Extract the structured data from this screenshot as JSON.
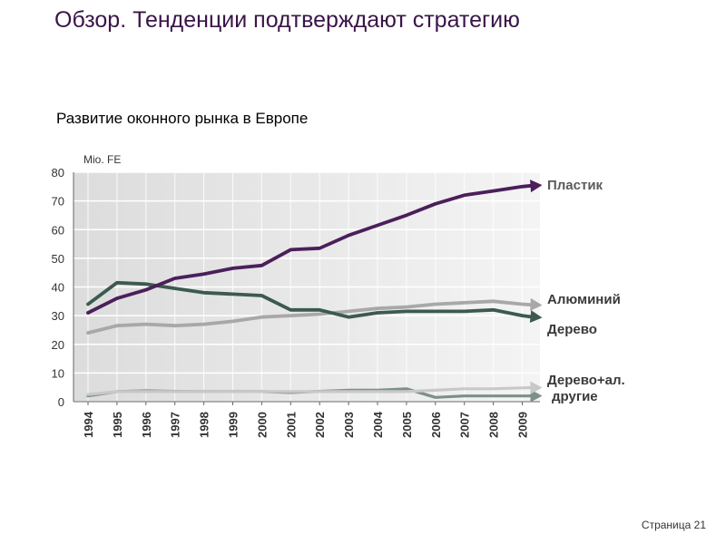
{
  "slide": {
    "title": "Обзор. Тенденции подтверждают стратегию",
    "subtitle": "Развитие оконного рынка в Европе",
    "page_label": "Страница 21"
  },
  "colors": {
    "plastic": "#4b1f5b",
    "aluminium": "#a8a8a8",
    "wood": "#3c5a50",
    "wood_alu": "#c8c8c8",
    "other": "#7d8f8a"
  },
  "chart_data": {
    "type": "line",
    "ylabel": "Mio. FE",
    "xlabel": "",
    "ylim": [
      0,
      80
    ],
    "y_ticks": [
      0,
      10,
      20,
      30,
      40,
      50,
      60,
      70,
      80
    ],
    "categories": [
      "1994",
      "1995",
      "1996",
      "1997",
      "1998",
      "1999",
      "2000",
      "2001",
      "2002",
      "2003",
      "2004",
      "2005",
      "2006",
      "2007",
      "2008",
      "2009"
    ],
    "series": [
      {
        "key": "plastic",
        "name": "Пластик",
        "values": [
          31,
          36,
          39,
          43,
          44.5,
          46.5,
          47.5,
          53,
          53.5,
          58,
          61.5,
          65,
          69,
          72,
          73.5,
          75
        ]
      },
      {
        "key": "aluminium",
        "name": "Алюминий",
        "values": [
          24,
          26.5,
          27,
          26.5,
          27,
          28,
          29.5,
          30,
          30.5,
          31.5,
          32.5,
          33,
          34,
          34.5,
          35,
          34
        ]
      },
      {
        "key": "wood",
        "name": "Дерево",
        "values": [
          34,
          41.5,
          41,
          39.5,
          38,
          37.5,
          37,
          32,
          32,
          29.5,
          31,
          31.5,
          31.5,
          31.5,
          32,
          30
        ]
      },
      {
        "key": "wood_alu",
        "name": "Дерево+ал.",
        "values": [
          2.5,
          3.5,
          3.5,
          3.5,
          3.5,
          3.5,
          3.5,
          3.5,
          3.5,
          3.5,
          3.5,
          3.5,
          4,
          4.5,
          4.5,
          4.8
        ]
      },
      {
        "key": "other",
        "name": "другие",
        "values": [
          2,
          3.5,
          3.8,
          3.6,
          3.5,
          3.5,
          3.5,
          3.2,
          3.6,
          4,
          4,
          4.5,
          1.5,
          2,
          2,
          2
        ]
      }
    ]
  }
}
